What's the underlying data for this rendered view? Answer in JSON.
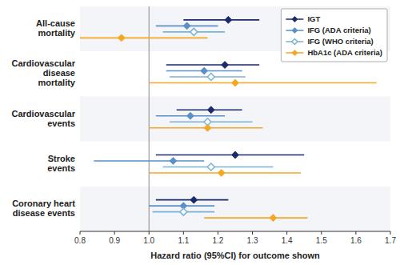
{
  "chart_data": {
    "type": "forest",
    "orientation": "horizontal",
    "categories": [
      "All-cause\nmortality",
      "Cardiovascular\ndisease\nmortality",
      "Cardiovascular\nevents",
      "Stroke\nevents",
      "Coronary heart\ndisease events"
    ],
    "xlabel": "Hazard ratio (95%CI) for outcome shown",
    "xlim": [
      0.8,
      1.7
    ],
    "xticks": [
      0.8,
      0.9,
      {
        "value": 1.0,
        "label": "1.0"
      },
      1.1,
      1.2,
      1.3,
      1.4,
      1.5,
      1.6,
      1.7
    ],
    "reference_x": 1.0,
    "grid": false,
    "legend": "upper right",
    "series": [
      {
        "name": "IGT",
        "color": "#1b2a6b",
        "marker": "diamond",
        "values": [
          1.23,
          1.22,
          1.18,
          1.25,
          1.13
        ],
        "lo": [
          1.1,
          1.05,
          1.08,
          1.02,
          1.02
        ],
        "hi": [
          1.32,
          1.32,
          1.27,
          1.45,
          1.23
        ]
      },
      {
        "name": "IFG (ADA criteria)",
        "color": "#5b8fc7",
        "marker": "diamond",
        "values": [
          1.11,
          1.16,
          1.12,
          1.07,
          1.1
        ],
        "lo": [
          1.02,
          1.05,
          1.02,
          0.84,
          1.0
        ],
        "hi": [
          1.2,
          1.27,
          1.22,
          1.16,
          1.19
        ]
      },
      {
        "name": "IFG (WHO criteria)",
        "color": "#7ab3d4",
        "marker": "open-diamond",
        "values": [
          1.13,
          1.18,
          1.17,
          1.18,
          1.1
        ],
        "lo": [
          1.04,
          1.06,
          1.06,
          1.04,
          1.01
        ],
        "hi": [
          1.22,
          1.28,
          1.3,
          1.36,
          1.19
        ]
      },
      {
        "name": "HbA1c (ADA criteria)",
        "color": "#f5a623",
        "marker": "diamond",
        "values": [
          0.92,
          1.25,
          1.17,
          1.21,
          1.36
        ],
        "lo": [
          0.8,
          1.0,
          1.0,
          1.0,
          1.16
        ],
        "hi": [
          1.17,
          1.66,
          1.33,
          1.44,
          1.46
        ]
      }
    ]
  }
}
